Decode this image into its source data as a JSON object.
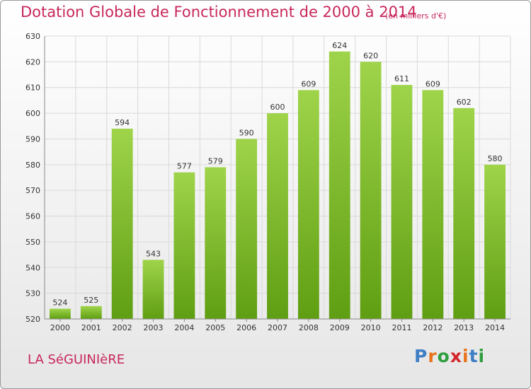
{
  "header": {
    "title": "Dotation Globale de Fonctionnement de 2000 à 2014",
    "subtitle": "(en milliers d'€)"
  },
  "footer": {
    "commune": "LA SéGUINIèRE",
    "logo": "Proxiti"
  },
  "colors": {
    "bar_top": "#9fd44a",
    "bar_bottom": "#5f9e12",
    "title": "#c8275a",
    "grid": "#d9d9d9"
  },
  "chart_data": {
    "type": "bar",
    "categories": [
      "2000",
      "2001",
      "2002",
      "2003",
      "2004",
      "2005",
      "2006",
      "2007",
      "2008",
      "2009",
      "2010",
      "2011",
      "2012",
      "2013",
      "2014"
    ],
    "values": [
      524,
      525,
      594,
      543,
      577,
      579,
      590,
      600,
      609,
      624,
      620,
      611,
      609,
      602,
      580
    ],
    "ylim": [
      520,
      630
    ],
    "yticks": [
      520,
      530,
      540,
      550,
      560,
      570,
      580,
      590,
      600,
      610,
      620,
      630
    ],
    "grid": true
  }
}
